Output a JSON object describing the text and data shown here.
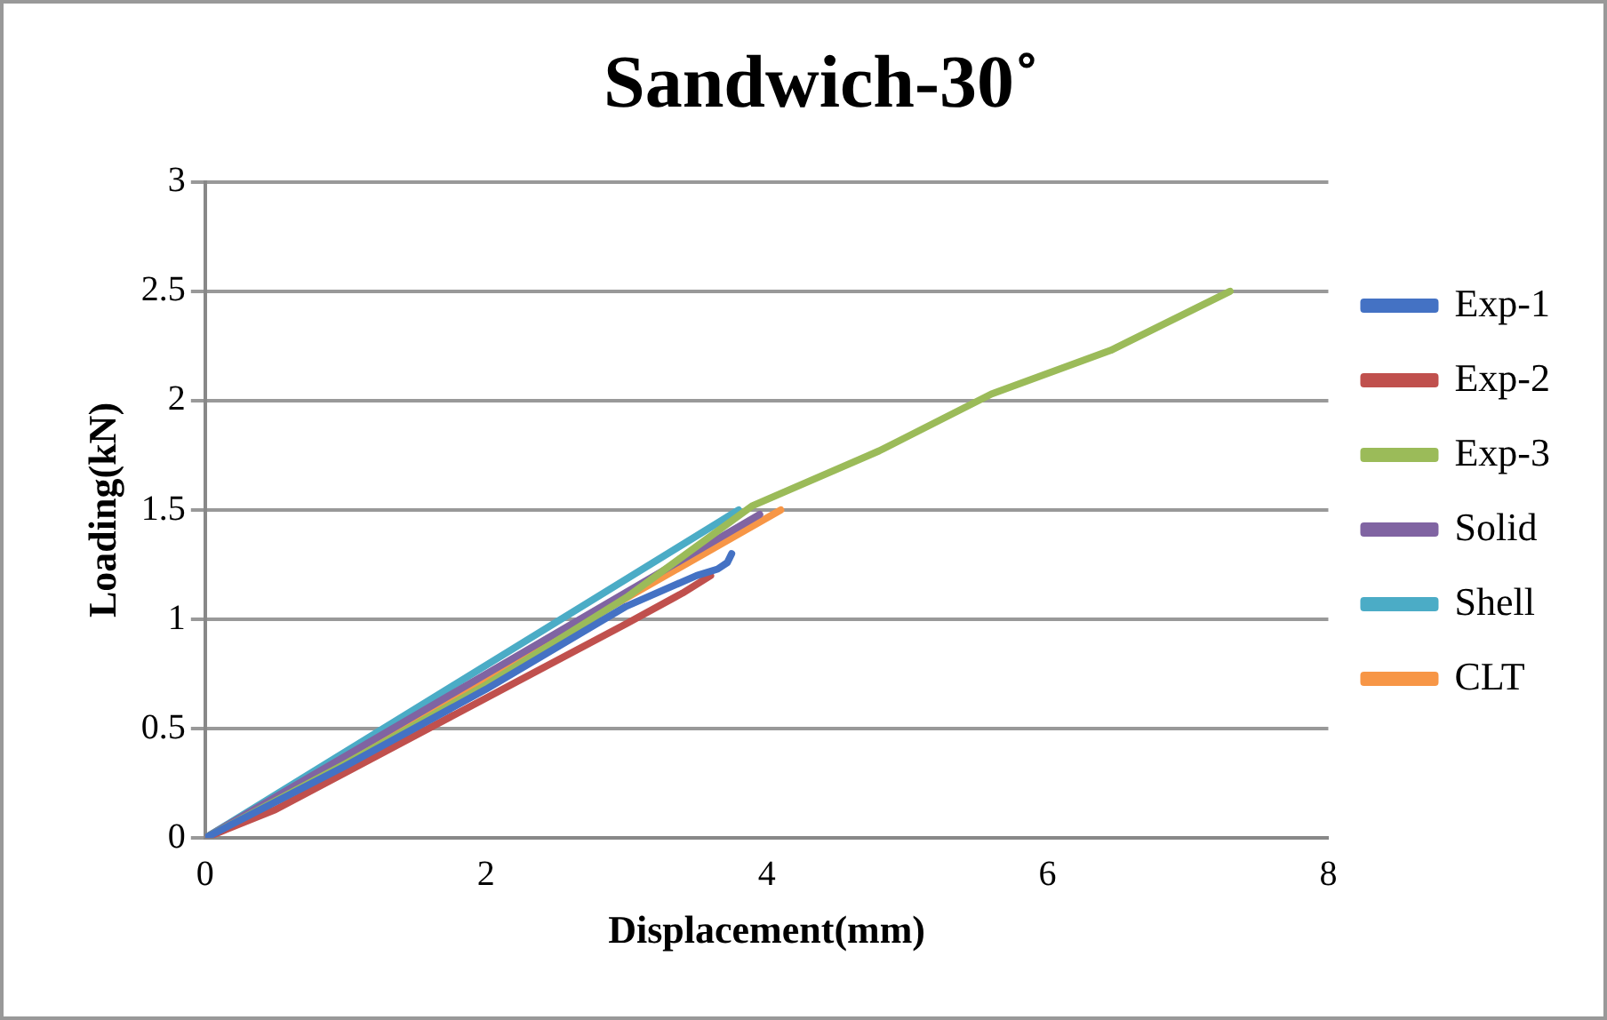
{
  "chart_data": {
    "type": "line",
    "title": "Sandwich-30˚",
    "xlabel": "Displacement(mm)",
    "ylabel": "Loading(kN)",
    "xlim": [
      0,
      8
    ],
    "xticks": [
      0,
      2,
      4,
      6,
      8
    ],
    "ylim": [
      0,
      3
    ],
    "yticks": [
      0,
      0.5,
      1,
      1.5,
      2,
      2.5,
      3
    ],
    "grid": "y",
    "legend": "right",
    "marker": "none",
    "line_style": "solid",
    "series": [
      {
        "name": "Exp-1",
        "color": "#4472c4",
        "x": [
          0,
          1,
          2,
          3,
          3.5,
          3.65,
          3.72,
          3.75
        ],
        "values": [
          0,
          0.33,
          0.68,
          1.06,
          1.2,
          1.23,
          1.26,
          1.3
        ]
      },
      {
        "name": "Exp-2",
        "color": "#c0504d",
        "x": [
          0,
          0.5,
          1,
          2,
          3,
          3.4,
          3.6
        ],
        "values": [
          0,
          0.13,
          0.3,
          0.64,
          0.98,
          1.12,
          1.2
        ]
      },
      {
        "name": "Exp-3",
        "color": "#9bbb59",
        "x": [
          0,
          1,
          2,
          3,
          3.9,
          4.8,
          5.6,
          6.45,
          7.3
        ],
        "values": [
          0,
          0.34,
          0.7,
          1.1,
          1.52,
          1.77,
          2.03,
          2.23,
          2.5
        ]
      },
      {
        "name": "Solid",
        "color": "#8064a2",
        "x": [
          0,
          3.95
        ],
        "values": [
          0,
          1.48
        ]
      },
      {
        "name": "Shell",
        "color": "#4bacc6",
        "x": [
          0,
          3.8
        ],
        "values": [
          0,
          1.5
        ]
      },
      {
        "name": "CLT",
        "color": "#f79646",
        "x": [
          0,
          4.1
        ],
        "values": [
          0,
          1.5
        ]
      }
    ]
  }
}
